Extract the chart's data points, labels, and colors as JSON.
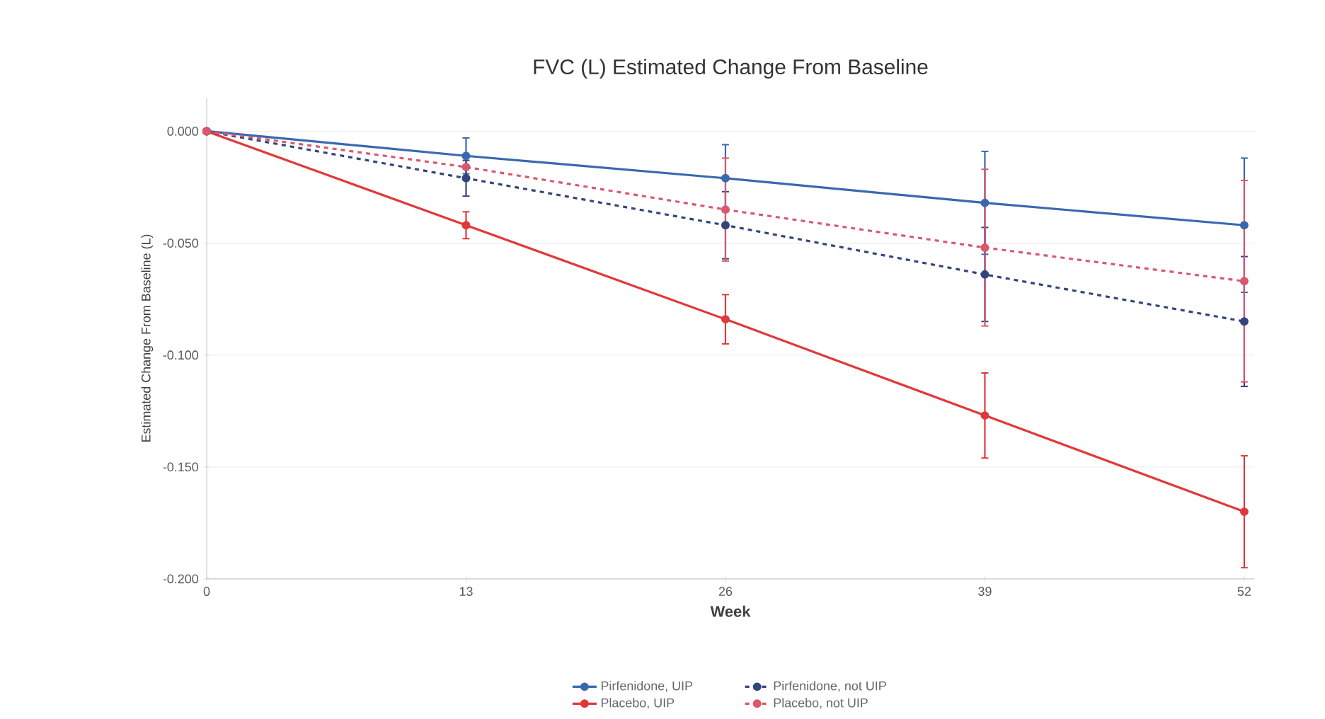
{
  "chart_data": {
    "type": "line",
    "title": "FVC (L) Estimated Change From Baseline",
    "xlabel": "Week",
    "ylabel": "Estimated Change From Baseline (L)",
    "x": [
      0,
      13,
      26,
      39,
      52
    ],
    "xlim": [
      0,
      52.5
    ],
    "xticks": [
      0,
      13,
      26,
      39,
      52
    ],
    "ylim": [
      -0.2,
      0.015
    ],
    "yticks": [
      {
        "value": 0,
        "label": "0.000"
      },
      {
        "value": -0.05,
        "label": "-0.050"
      },
      {
        "value": -0.1,
        "label": "-0.100"
      },
      {
        "value": -0.15,
        "label": "-0.150"
      },
      {
        "value": -0.2,
        "label": "-0.200"
      }
    ],
    "grid": "y",
    "legend": "bottom",
    "marker": "circle",
    "series": [
      {
        "name": "Pirfenidone, UIP",
        "color": "#3a68b0",
        "line_style": "solid",
        "values": [
          0,
          -0.011,
          -0.021,
          -0.032,
          -0.042
        ],
        "errors": [
          null,
          0.008,
          0.015,
          0.023,
          0.03
        ]
      },
      {
        "name": "Pirfenidone, not UIP",
        "color": "#34447f",
        "line_style": "dashed",
        "values": [
          0,
          -0.021,
          -0.042,
          -0.064,
          -0.085
        ],
        "errors": [
          null,
          0.008,
          0.015,
          0.021,
          0.029
        ]
      },
      {
        "name": "Placebo, UIP",
        "color": "#e0393b",
        "line_style": "solid",
        "values": [
          0,
          -0.042,
          -0.084,
          -0.127,
          -0.17
        ],
        "errors": [
          null,
          0.006,
          0.011,
          0.019,
          0.025
        ]
      },
      {
        "name": "Placebo, not UIP",
        "color": "#d9586e",
        "line_style": "dashed",
        "values": [
          0,
          -0.016,
          -0.035,
          -0.052,
          -0.067
        ],
        "errors": [
          null,
          null,
          0.023,
          0.035,
          0.045
        ]
      }
    ]
  }
}
